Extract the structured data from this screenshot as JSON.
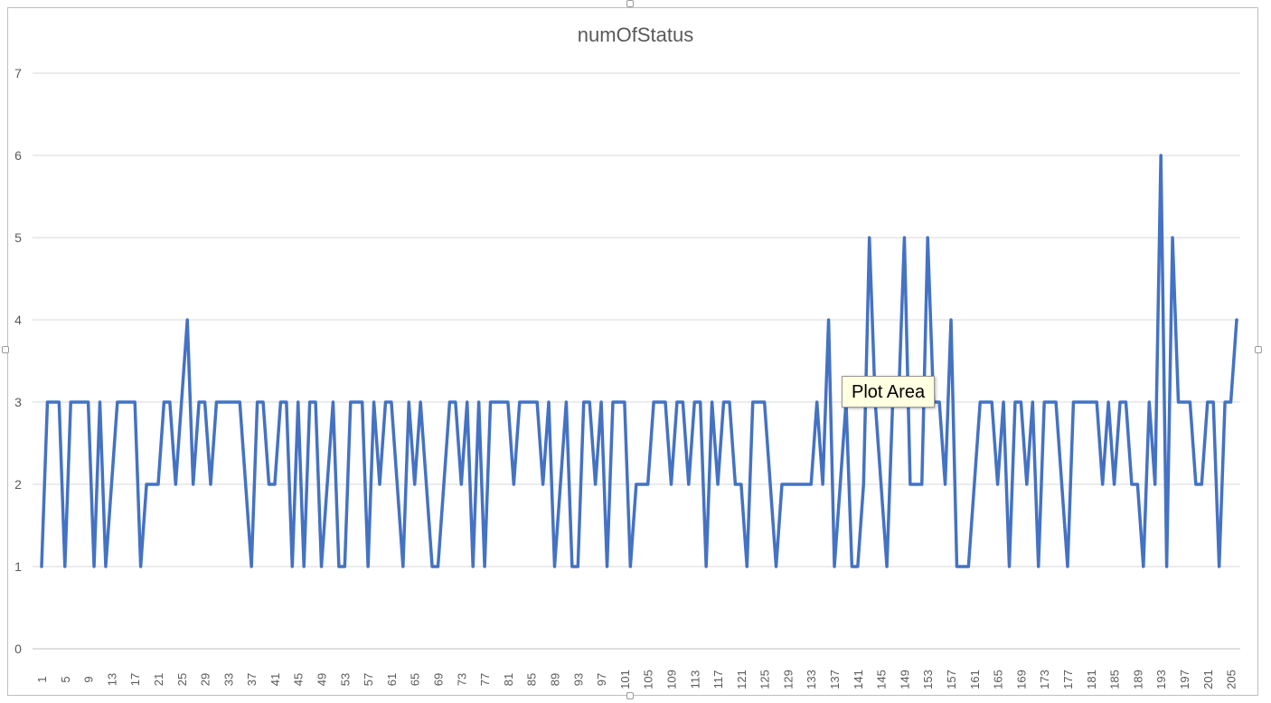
{
  "chart_data": {
    "type": "line",
    "title": "numOfStatus",
    "xlabel": "",
    "ylabel": "",
    "ylim": [
      0,
      7
    ],
    "yticks": [
      "0",
      "1",
      "2",
      "3",
      "4",
      "5",
      "6",
      "7"
    ],
    "grid": true,
    "legend": "none",
    "x_tick_step": 4,
    "color": "#4472C4",
    "series": [
      {
        "values": [
          1,
          3,
          3,
          3,
          1,
          3,
          3,
          3,
          3,
          1,
          3,
          1,
          2,
          3,
          3,
          3,
          3,
          1,
          2,
          2,
          2,
          3,
          3,
          2,
          3,
          4,
          2,
          3,
          3,
          2,
          3,
          3,
          3,
          3,
          3,
          2,
          1,
          3,
          3,
          2,
          2,
          3,
          3,
          1,
          3,
          1,
          3,
          3,
          1,
          2,
          3,
          1,
          1,
          3,
          3,
          3,
          1,
          3,
          2,
          3,
          3,
          2,
          1,
          3,
          2,
          3,
          2,
          1,
          1,
          2,
          3,
          3,
          2,
          3,
          1,
          3,
          1,
          3,
          3,
          3,
          3,
          2,
          3,
          3,
          3,
          3,
          2,
          3,
          1,
          2,
          3,
          1,
          1,
          3,
          3,
          2,
          3,
          1,
          3,
          3,
          3,
          1,
          2,
          2,
          2,
          3,
          3,
          3,
          2,
          3,
          3,
          2,
          3,
          3,
          1,
          3,
          2,
          3,
          3,
          2,
          2,
          1,
          3,
          3,
          3,
          2,
          1,
          2,
          2,
          2,
          2,
          2,
          2,
          3,
          2,
          4,
          1,
          2,
          3,
          1,
          1,
          2,
          5,
          3,
          2,
          1,
          3,
          3,
          5,
          2,
          2,
          2,
          5,
          3,
          3,
          2,
          4,
          1,
          1,
          1,
          2,
          3,
          3,
          3,
          2,
          3,
          1,
          3,
          3,
          2,
          3,
          1,
          3,
          3,
          3,
          2,
          1,
          3,
          3,
          3,
          3,
          3,
          2,
          3,
          2,
          3,
          3,
          2,
          2,
          1,
          3,
          2,
          6,
          1,
          5,
          3,
          3,
          3,
          2,
          2,
          3,
          3,
          1,
          3,
          3,
          4
        ]
      }
    ]
  },
  "tooltip": {
    "label": "Plot Area"
  }
}
